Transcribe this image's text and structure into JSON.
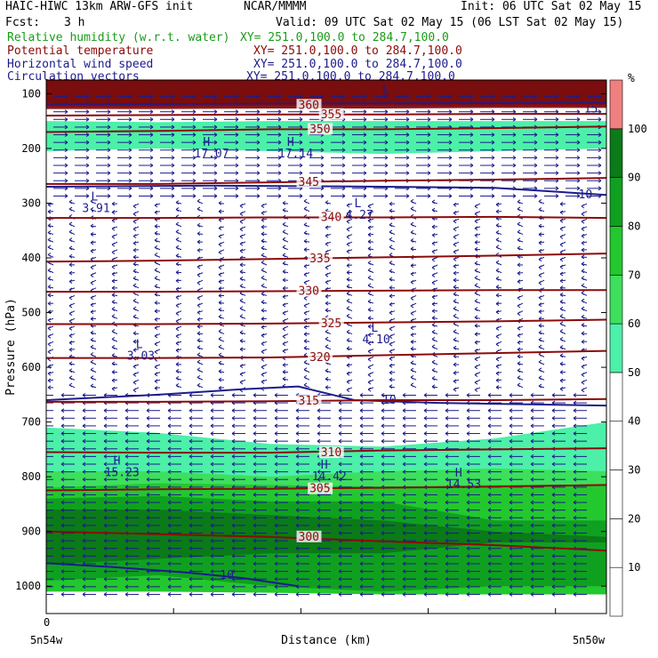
{
  "header": {
    "title": "HAIC-HIWC 13km ARW-GFS init",
    "center": "NCAR/MMMM",
    "init": "Init: 06 UTC Sat 02 May 15",
    "fcst_label": "Fcst:",
    "fcst_value": "3 h",
    "valid": "Valid: 09 UTC Sat 02 May 15 (06 LST Sat 02 May 15)"
  },
  "fields": [
    {
      "name": "Relative humidity (w.r.t. water)",
      "xy": "XY= 251.0,100.0 to 284.7,100.0",
      "color": "#1a9c1a"
    },
    {
      "name": "Potential temperature",
      "xy": "XY= 251.0,100.0 to 284.7,100.0",
      "color": "#8b0a0a"
    },
    {
      "name": "Horizontal wind speed",
      "xy": "XY= 251.0,100.0 to 284.7,100.0",
      "color": "#1c1c8c"
    },
    {
      "name": "Circulation vectors",
      "xy": "XY= 251.0,100.0 to 284.7,100.0",
      "color": "#1c1c8c"
    }
  ],
  "chart_data": {
    "type": "heatmap",
    "xlabel": "Distance (km)",
    "ylabel": "Pressure (hPa)",
    "x_tick_labels": [
      "0"
    ],
    "x_start_label": "5n54w",
    "x_end_label": "5n50w",
    "y_ticks": [
      100,
      200,
      300,
      400,
      500,
      600,
      700,
      800,
      900,
      1000
    ],
    "ylim": [
      1050,
      75
    ],
    "colorbar": {
      "unit": "%",
      "levels": [
        10,
        20,
        30,
        40,
        50,
        60,
        70,
        80,
        90,
        100
      ],
      "colors": [
        "#ffffff",
        "#ffffff",
        "#ffffff",
        "#ffffff",
        "#ffffff",
        "#4cf0a8",
        "#3ce05c",
        "#22c82e",
        "#10a020",
        "#0b7a18",
        "#f08080"
      ]
    },
    "theta_contours": [
      {
        "label": "300",
        "p": [
          900,
          905,
          910,
          918,
          925,
          935
        ]
      },
      {
        "label": "305",
        "p": [
          825,
          823,
          822,
          820,
          818,
          815
        ]
      },
      {
        "label": "310",
        "p": [
          755,
          756,
          756,
          752,
          750,
          748
        ]
      },
      {
        "label": "315",
        "p": [
          663,
          663,
          662,
          660,
          660,
          658
        ]
      },
      {
        "label": "320",
        "p": [
          583,
          583,
          582,
          578,
          574,
          570
        ]
      },
      {
        "label": "325",
        "p": [
          521,
          521,
          520,
          518,
          516,
          513
        ]
      },
      {
        "label": "330",
        "p": [
          462,
          462,
          461,
          460,
          459,
          459
        ]
      },
      {
        "label": "335",
        "p": [
          407,
          405,
          402,
          399,
          396,
          392
        ]
      },
      {
        "label": "340",
        "p": [
          327,
          327,
          326,
          326,
          325,
          327
        ]
      },
      {
        "label": "345",
        "p": [
          265,
          265,
          262,
          259,
          257,
          254
        ]
      },
      {
        "label": "350",
        "p": [
          170,
          168,
          165,
          165,
          163,
          160
        ]
      },
      {
        "label": "355",
        "p": [
          140,
          139,
          138,
          138,
          137,
          137
        ]
      },
      {
        "label": "360",
        "p": [
          122,
          122,
          121,
          121,
          121,
          120
        ]
      }
    ],
    "wind_labels": [
      {
        "label": "10",
        "x_frac": 0.6,
        "p": 660
      },
      {
        "label": "10",
        "x_frac": 0.95,
        "p": 285
      },
      {
        "label": "10",
        "x_frac": 0.31,
        "p": 980
      },
      {
        "label": "15",
        "x_frac": 0.96,
        "p": 128
      }
    ],
    "extrema": [
      {
        "type": "H",
        "value": "17.07",
        "x_frac": 0.28,
        "p": 195
      },
      {
        "type": "H",
        "value": "17.14",
        "x_frac": 0.43,
        "p": 195
      },
      {
        "type": "L",
        "value": "3.91",
        "x_frac": 0.08,
        "p": 295
      },
      {
        "type": "L",
        "value": "4.27",
        "x_frac": 0.55,
        "p": 307
      },
      {
        "type": "L",
        "value": "3.03",
        "x_frac": 0.16,
        "p": 565
      },
      {
        "type": "L",
        "value": "4.10",
        "x_frac": 0.58,
        "p": 535
      },
      {
        "type": "H",
        "value": "15.23",
        "x_frac": 0.12,
        "p": 778
      },
      {
        "type": "H",
        "value": "14.42",
        "x_frac": 0.49,
        "p": 785
      },
      {
        "type": "H",
        "value": "14.53",
        "x_frac": 0.73,
        "p": 800
      },
      {
        "type": "L",
        "value": "",
        "x_frac": 0.6,
        "p": 100
      }
    ]
  }
}
